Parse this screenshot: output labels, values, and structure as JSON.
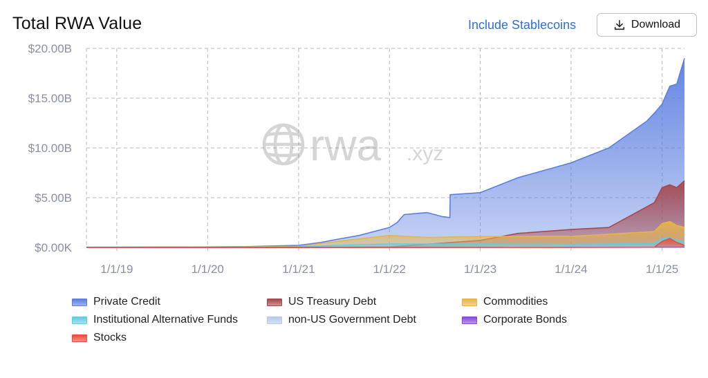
{
  "header": {
    "title": "Total RWA Value",
    "stablecoin_toggle": "Include Stablecoins",
    "download_label": "Download",
    "download_icon": "download-icon"
  },
  "watermark": {
    "text": "rwa",
    "suffix": ".xyz",
    "icon": "globe-icon"
  },
  "colors": {
    "grid": "#b9b9b9",
    "tick": "#8a8fa3",
    "private_credit": "#5b7fe0",
    "us_treasury": "#a5484d",
    "commodities": "#e6b54a",
    "institutional_funds": "#63cde0",
    "non_us_gov": "#b9cbe8",
    "corporate_bonds": "#8a4ad8",
    "stocks": "#f04a3a"
  },
  "chart_data": {
    "type": "area",
    "stacked": false,
    "ylim": [
      0,
      20
    ],
    "yticks": [
      0,
      5,
      10,
      15,
      20
    ],
    "ytick_labels": [
      "$0.00K",
      "$5.00B",
      "$10.00B",
      "$15.00B",
      "$20.00B"
    ],
    "xlim": [
      "2018-09-01",
      "2025-04-01"
    ],
    "xticks": [
      "2019-01-01",
      "2020-01-01",
      "2021-01-01",
      "2022-01-01",
      "2023-01-01",
      "2024-01-01",
      "2025-01-01"
    ],
    "xtick_labels": [
      "1/1/19",
      "1/1/20",
      "1/1/21",
      "1/1/22",
      "1/1/23",
      "1/1/24",
      "1/1/25"
    ],
    "grid": true,
    "legend_position": "bottom",
    "series": [
      {
        "name": "Private Credit",
        "key": "private_credit",
        "x": [
          "2018-09-01",
          "2019-06-01",
          "2020-01-01",
          "2020-06-01",
          "2021-01-01",
          "2021-04-01",
          "2021-06-01",
          "2021-09-01",
          "2021-12-01",
          "2022-01-01",
          "2022-02-01",
          "2022-03-01",
          "2022-06-01",
          "2022-08-01",
          "2022-09-01",
          "2022-09-02",
          "2023-01-01",
          "2023-06-01",
          "2024-01-01",
          "2024-06-01",
          "2024-11-01",
          "2024-12-01",
          "2025-01-01",
          "2025-02-01",
          "2025-03-01",
          "2025-04-01"
        ],
        "values": [
          0.02,
          0.03,
          0.05,
          0.08,
          0.2,
          0.5,
          0.8,
          1.2,
          1.8,
          2.0,
          2.5,
          3.3,
          3.5,
          3.1,
          3.0,
          5.3,
          5.5,
          7.0,
          8.5,
          10.0,
          12.7,
          13.5,
          14.4,
          16.2,
          16.4,
          19.0
        ]
      },
      {
        "name": "US Treasury Debt",
        "key": "us_treasury",
        "x": [
          "2018-09-01",
          "2021-01-01",
          "2022-01-01",
          "2023-01-01",
          "2023-06-01",
          "2024-01-01",
          "2024-06-01",
          "2024-12-01",
          "2025-01-01",
          "2025-02-01",
          "2025-03-01",
          "2025-04-01"
        ],
        "values": [
          0.0,
          0.0,
          0.05,
          0.7,
          1.4,
          1.8,
          2.0,
          4.5,
          6.0,
          6.3,
          6.0,
          6.7
        ]
      },
      {
        "name": "Commodities",
        "key": "commodities",
        "x": [
          "2018-09-01",
          "2021-01-01",
          "2021-06-01",
          "2022-01-01",
          "2022-06-01",
          "2023-01-01",
          "2024-01-01",
          "2024-12-01",
          "2025-01-01",
          "2025-02-01",
          "2025-03-01",
          "2025-04-01"
        ],
        "values": [
          0.0,
          0.1,
          0.6,
          1.2,
          1.0,
          1.1,
          1.1,
          1.6,
          2.4,
          2.6,
          2.2,
          2.0
        ]
      },
      {
        "name": "Institutional Alternative Funds",
        "key": "institutional_funds",
        "x": [
          "2018-09-01",
          "2021-01-01",
          "2021-06-01",
          "2022-01-01",
          "2023-01-01",
          "2024-01-01",
          "2024-12-01",
          "2025-01-01",
          "2025-02-01",
          "2025-03-01",
          "2025-04-01"
        ],
        "values": [
          0.0,
          0.05,
          0.2,
          0.35,
          0.35,
          0.3,
          0.4,
          0.9,
          1.0,
          0.7,
          0.6
        ]
      },
      {
        "name": "non-US Government Debt",
        "key": "non_us_gov",
        "x": [
          "2018-09-01",
          "2022-01-01",
          "2023-01-01",
          "2024-01-01",
          "2025-01-01",
          "2025-04-01"
        ],
        "values": [
          0.0,
          0.02,
          0.05,
          0.08,
          0.1,
          0.1
        ]
      },
      {
        "name": "Corporate Bonds",
        "key": "corporate_bonds",
        "x": [
          "2018-09-01",
          "2022-01-01",
          "2024-01-01",
          "2025-04-01"
        ],
        "values": [
          0.0,
          0.01,
          0.02,
          0.03
        ]
      },
      {
        "name": "Stocks",
        "key": "stocks",
        "x": [
          "2018-09-01",
          "2022-01-01",
          "2024-01-01",
          "2024-12-01",
          "2025-01-01",
          "2025-02-01",
          "2025-03-01",
          "2025-04-01"
        ],
        "values": [
          0.0,
          0.0,
          0.01,
          0.02,
          0.6,
          0.9,
          0.5,
          0.2
        ]
      }
    ]
  }
}
